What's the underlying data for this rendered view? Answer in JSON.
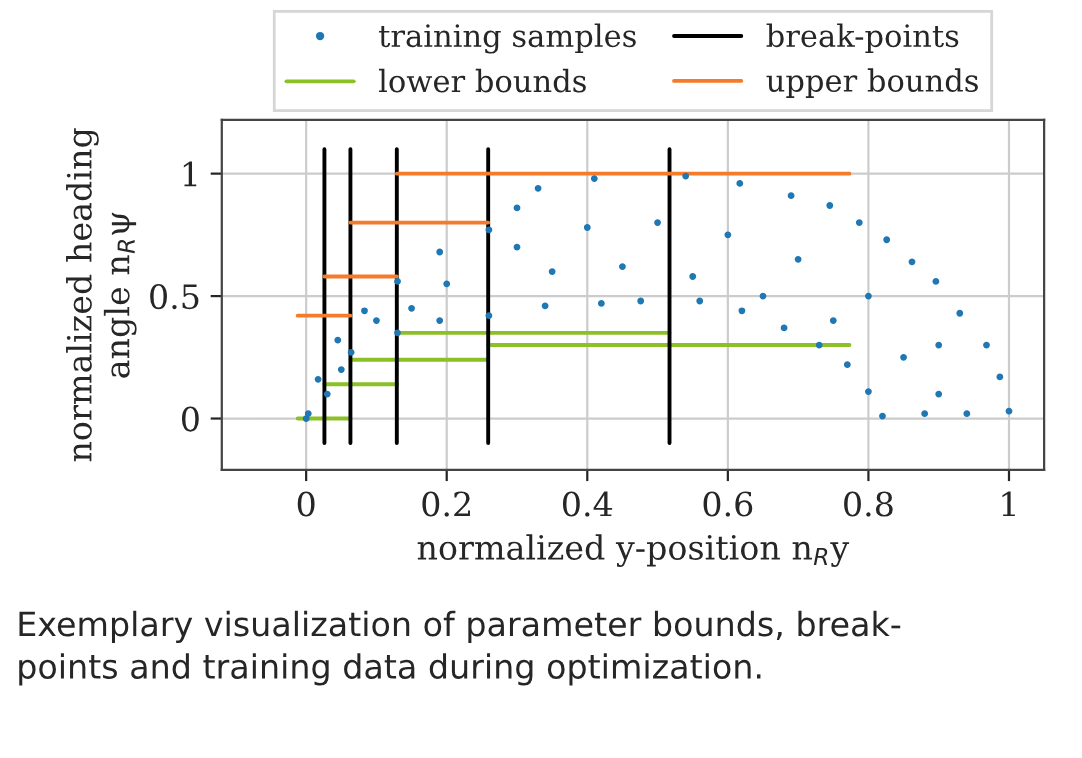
{
  "chart_data": {
    "type": "scatter",
    "xlabel": "normalized y-position n$_{R}$y",
    "ylabel": "normalized heading\nangle n$_{R}$ψ",
    "annotations": [
      "Exemplary visualization of parameter bounds, break-\npoints and training data during optimization."
    ],
    "xlim": [
      -0.12,
      1.05
    ],
    "ylim": [
      -0.21,
      1.22
    ],
    "xticks": [
      0,
      0.2,
      0.4,
      0.6,
      0.8,
      1
    ],
    "yticks": [
      0,
      0.5,
      1
    ],
    "grid": true,
    "legend": "top",
    "series": [
      {
        "name": "training samples",
        "marker": "circle",
        "color": "#1f77b4",
        "x": [
          0.0,
          0.003,
          0.017,
          0.03,
          0.045,
          0.05,
          0.064,
          0.083,
          0.1,
          0.13,
          0.13,
          0.15,
          0.19,
          0.19,
          0.2,
          0.26,
          0.26,
          0.3,
          0.3,
          0.33,
          0.34,
          0.35,
          0.4,
          0.41,
          0.42,
          0.45,
          0.476,
          0.5,
          0.54,
          0.55,
          0.56,
          0.6,
          0.617,
          0.62,
          0.65,
          0.68,
          0.69,
          0.7,
          0.73,
          0.745,
          0.75,
          0.77,
          0.787,
          0.8,
          0.8,
          0.82,
          0.826,
          0.85,
          0.862,
          0.88,
          0.9,
          0.9,
          0.896,
          0.93,
          0.94,
          0.968,
          0.987,
          1.0
        ],
        "values": [
          0.0,
          0.02,
          0.16,
          0.1,
          0.32,
          0.2,
          0.27,
          0.44,
          0.4,
          0.56,
          0.35,
          0.45,
          0.68,
          0.4,
          0.55,
          0.77,
          0.42,
          0.86,
          0.7,
          0.94,
          0.46,
          0.6,
          0.78,
          0.98,
          0.47,
          0.62,
          0.48,
          0.8,
          0.99,
          0.58,
          0.48,
          0.75,
          0.96,
          0.44,
          0.5,
          0.37,
          0.91,
          0.65,
          0.3,
          0.87,
          0.4,
          0.22,
          0.8,
          0.11,
          0.5,
          0.01,
          0.73,
          0.25,
          0.64,
          0.02,
          0.1,
          0.3,
          0.56,
          0.43,
          0.02,
          0.3,
          0.17,
          0.03
        ]
      },
      {
        "name": "lower bounds",
        "type": "line",
        "color": "#8cc026",
        "x": [
          -0.012,
          0.063,
          null,
          0.026,
          0.129,
          null,
          0.063,
          0.259,
          null,
          0.129,
          0.517,
          null,
          0.259,
          0.773
        ],
        "values": [
          0,
          0,
          null,
          0.14,
          0.14,
          null,
          0.24,
          0.24,
          null,
          0.35,
          0.35,
          null,
          0.3,
          0.3
        ]
      },
      {
        "name": "break-points",
        "type": "line",
        "color": "#000000",
        "x": [
          0.026,
          0.026,
          null,
          0.063,
          0.063,
          null,
          0.129,
          0.129,
          null,
          0.259,
          0.259,
          null,
          0.517,
          0.517
        ],
        "values": [
          -0.1,
          1.1,
          null,
          -0.1,
          1.1,
          null,
          -0.1,
          1.1,
          null,
          -0.1,
          1.1,
          null,
          -0.1,
          1.1
        ]
      },
      {
        "name": "upper bounds",
        "type": "line",
        "color": "#f47b2a",
        "x": [
          -0.012,
          0.063,
          null,
          0.026,
          0.129,
          null,
          0.063,
          0.259,
          null,
          0.129,
          0.773
        ],
        "values": [
          0.42,
          0.42,
          null,
          0.58,
          0.58,
          null,
          0.8,
          0.8,
          null,
          1.0,
          1.0
        ]
      }
    ]
  }
}
